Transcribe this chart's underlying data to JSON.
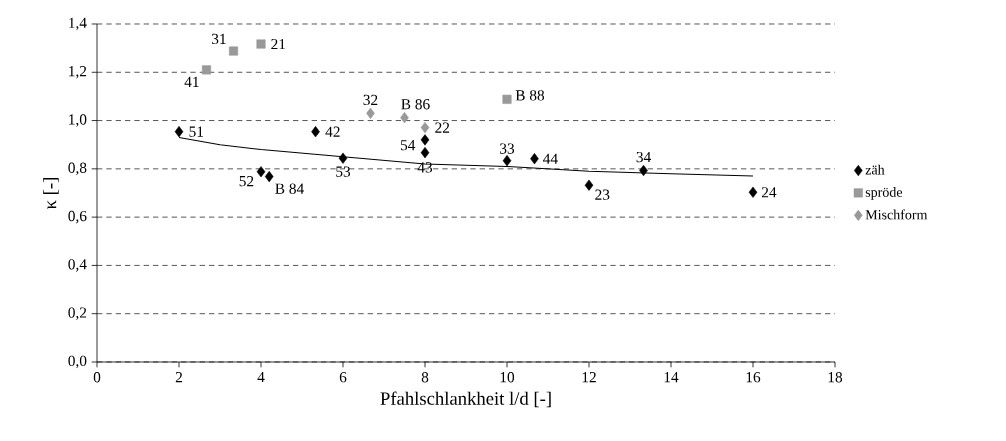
{
  "chart_data": {
    "type": "scatter",
    "xlabel": "Pfahlschlankheit l/d [-]",
    "ylabel": "κ [-]",
    "xlim": [
      0,
      18
    ],
    "xticks": [
      0,
      2,
      4,
      6,
      8,
      10,
      12,
      14,
      16,
      18
    ],
    "ylim": [
      0,
      1.4
    ],
    "yticks": [
      {
        "value": 0,
        "label": "0,0"
      },
      {
        "value": 0.2,
        "label": "0,2"
      },
      {
        "value": 0.4,
        "label": "0,4"
      },
      {
        "value": 0.6,
        "label": "0,6"
      },
      {
        "value": 0.8,
        "label": "0,8"
      },
      {
        "value": 1.0,
        "label": "1,0"
      },
      {
        "value": 1.2,
        "label": "1,2"
      },
      {
        "value": 1.4,
        "label": "1,4"
      }
    ],
    "grid": "y",
    "legend": "right",
    "series": [
      {
        "name": "zäh",
        "color": "#000000",
        "marker": "diamond",
        "x": [
          2,
          5.33,
          6,
          4,
          4.2,
          8,
          8,
          10,
          10.67,
          12,
          13.33,
          16
        ],
        "values": [
          0.954,
          0.954,
          0.844,
          0.788,
          0.768,
          0.92,
          0.867,
          0.834,
          0.842,
          0.732,
          0.793,
          0.703
        ]
      },
      {
        "name": "spröde",
        "color": "#999999",
        "marker": "square",
        "x": [
          2.67,
          3.33,
          4,
          10
        ],
        "values": [
          1.21,
          1.288,
          1.317,
          1.088
        ]
      },
      {
        "name": "Mischform",
        "color": "#999999",
        "marker": "diamond",
        "x": [
          6.67,
          7.5,
          8
        ],
        "values": [
          1.03,
          1.012,
          0.971
        ]
      },
      {
        "type": "line",
        "color": "#000000",
        "marker": "none",
        "x": [
          2,
          3,
          4,
          6,
          8,
          10,
          12,
          14,
          16
        ],
        "values": [
          0.93,
          0.9,
          0.88,
          0.85,
          0.82,
          0.81,
          0.79,
          0.78,
          0.77
        ]
      }
    ],
    "annotations": [
      {
        "text": "51",
        "x": 2,
        "y": 0.954
      },
      {
        "text": "42",
        "x": 5.33,
        "y": 0.954
      },
      {
        "text": "53",
        "x": 6,
        "y": 0.844
      },
      {
        "text": "52",
        "x": 4,
        "y": 0.788
      },
      {
        "text": "B 84",
        "x": 4.2,
        "y": 0.768
      },
      {
        "text": "54",
        "x": 8,
        "y": 0.92
      },
      {
        "text": "43",
        "x": 8,
        "y": 0.867
      },
      {
        "text": "33",
        "x": 10,
        "y": 0.834
      },
      {
        "text": "44",
        "x": 10.67,
        "y": 0.842
      },
      {
        "text": "23",
        "x": 12,
        "y": 0.732
      },
      {
        "text": "34",
        "x": 13.33,
        "y": 0.793
      },
      {
        "text": "24",
        "x": 16,
        "y": 0.703
      },
      {
        "text": "41",
        "x": 2.67,
        "y": 1.21
      },
      {
        "text": "31",
        "x": 3.33,
        "y": 1.288
      },
      {
        "text": "21",
        "x": 4,
        "y": 1.317
      },
      {
        "text": "B 88",
        "x": 10,
        "y": 1.088
      },
      {
        "text": "32",
        "x": 6.67,
        "y": 1.03
      },
      {
        "text": "B 86",
        "x": 7.5,
        "y": 1.012
      },
      {
        "text": "22",
        "x": 8,
        "y": 0.971
      }
    ]
  }
}
